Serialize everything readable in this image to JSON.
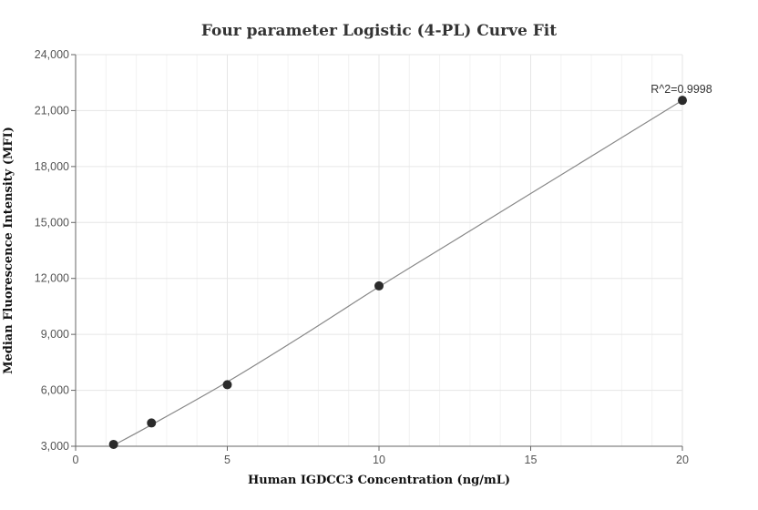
{
  "chart_data": {
    "type": "scatter",
    "title": "Four parameter Logistic (4-PL) Curve Fit",
    "xlabel": "Human IGDCC3 Concentration (ng/mL)",
    "ylabel": "Median Fluorescence Intensity (MFI)",
    "xlim": [
      0,
      20
    ],
    "ylim": [
      3000,
      24000
    ],
    "xticks": [
      0,
      5,
      10,
      15,
      20
    ],
    "yticks": [
      3000,
      6000,
      9000,
      12000,
      15000,
      18000,
      21000,
      24000
    ],
    "xtick_labels": [
      "0",
      "5",
      "10",
      "15",
      "20"
    ],
    "ytick_labels": [
      "3,000",
      "6,000",
      "9,000",
      "12,000",
      "15,000",
      "18,000",
      "21,000",
      "24,000"
    ],
    "grid": true,
    "points": [
      {
        "x": 1.25,
        "y": 3100
      },
      {
        "x": 2.5,
        "y": 4250
      },
      {
        "x": 5,
        "y": 6300
      },
      {
        "x": 10,
        "y": 11600
      },
      {
        "x": 20,
        "y": 21550
      }
    ],
    "curve": [
      {
        "x": 1.25,
        "y": 3050
      },
      {
        "x": 2.5,
        "y": 4150
      },
      {
        "x": 5,
        "y": 6450
      },
      {
        "x": 7.5,
        "y": 8950
      },
      {
        "x": 10,
        "y": 11550
      },
      {
        "x": 12.5,
        "y": 14050
      },
      {
        "x": 15,
        "y": 16550
      },
      {
        "x": 17.5,
        "y": 19050
      },
      {
        "x": 20,
        "y": 21550
      }
    ],
    "annotation": "R^2=0.9998"
  }
}
